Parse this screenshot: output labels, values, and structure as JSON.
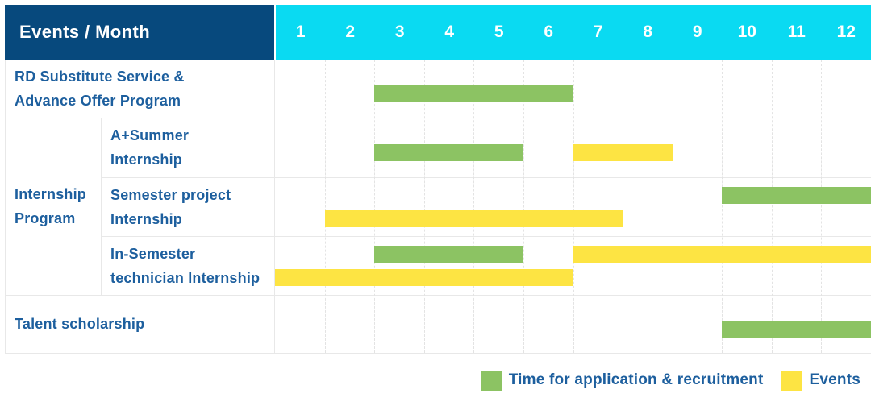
{
  "header": {
    "title": "Events / Month",
    "months": [
      "1",
      "2",
      "3",
      "4",
      "5",
      "6",
      "7",
      "8",
      "9",
      "10",
      "11",
      "12"
    ]
  },
  "rows": [
    {
      "label": "RD Substitute Service &\nAdvance Offer Program",
      "group": null
    },
    {
      "label": "A+Summer\nInternship",
      "group": "Internship Program"
    },
    {
      "label": "Semester project\nInternship",
      "group": "Internship Program"
    },
    {
      "label": "In-Semester\ntechnician Internship",
      "group": "Internship Program"
    },
    {
      "label": "Talent scholarship",
      "group": null
    }
  ],
  "group_label": "Internship\nProgram",
  "legend": [
    {
      "key": "application",
      "label": "Time for application & recruitment",
      "color": "#8cc363"
    },
    {
      "key": "event",
      "label": "Events",
      "color": "#fde443"
    }
  ],
  "colors": {
    "header_navy": "#07497d",
    "header_cyan": "#0adaf2",
    "bar_green": "#8cc363",
    "bar_yellow": "#fde443",
    "text_blue": "#1d5f9e",
    "grid_line": "#e8e8e8"
  },
  "chart_data": {
    "type": "bar",
    "subtype": "gantt",
    "title": "Events / Month",
    "x_axis": {
      "label": "Month",
      "ticks": [
        1,
        2,
        3,
        4,
        5,
        6,
        7,
        8,
        9,
        10,
        11,
        12
      ],
      "range": [
        1,
        12
      ]
    },
    "legend": {
      "application": "Time for application & recruitment",
      "event": "Events"
    },
    "tasks": [
      {
        "row": "RD Substitute Service & Advance Offer Program",
        "group": null,
        "bars": [
          {
            "kind": "application",
            "months": [
              3,
              6
            ],
            "line": "single"
          }
        ]
      },
      {
        "row": "A+Summer Internship",
        "group": "Internship Program",
        "bars": [
          {
            "kind": "application",
            "months": [
              3,
              5
            ],
            "line": "single"
          },
          {
            "kind": "event",
            "months": [
              7,
              8
            ],
            "line": "single"
          }
        ]
      },
      {
        "row": "Semester project Internship",
        "group": "Internship Program",
        "bars": [
          {
            "kind": "application",
            "months": [
              10,
              12
            ],
            "line": "top"
          },
          {
            "kind": "event",
            "months": [
              2,
              7
            ],
            "line": "bottom"
          }
        ]
      },
      {
        "row": "In-Semester technician Internship",
        "group": "Internship Program",
        "bars": [
          {
            "kind": "application",
            "months": [
              3,
              5
            ],
            "line": "top"
          },
          {
            "kind": "event",
            "months": [
              7,
              12
            ],
            "line": "top"
          },
          {
            "kind": "event",
            "months": [
              1,
              6
            ],
            "line": "bottom"
          }
        ]
      },
      {
        "row": "Talent scholarship",
        "group": null,
        "bars": [
          {
            "kind": "application",
            "months": [
              10,
              12
            ],
            "line": "single"
          }
        ]
      }
    ]
  }
}
